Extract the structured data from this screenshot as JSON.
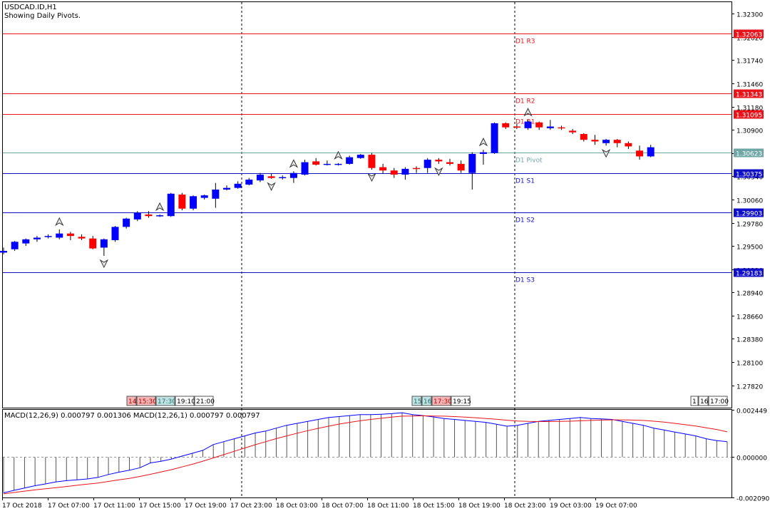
{
  "chart_data": [
    {
      "type": "candlestick",
      "symbol_label": "USDCAD.ID,H1",
      "subtitle": "Showing Daily Pivots.",
      "ylim": [
        1.2755,
        1.3244
      ],
      "y_ticks": [
        "1.32300",
        "1.32020",
        "1.31740",
        "1.31460",
        "1.31180",
        "1.30900",
        "1.30620",
        "1.30340",
        "1.30060",
        "1.29780",
        "1.29500",
        "1.29220",
        "1.28940",
        "1.28660",
        "1.28380",
        "1.28100",
        "1.27820"
      ],
      "grid": false,
      "pivot_lines": [
        {
          "name": "D1 R3",
          "value": 1.32063,
          "label": "1.32063",
          "color": "#e8131b",
          "kind": "resistance"
        },
        {
          "name": "D1 R2",
          "value": 1.31343,
          "label": "1.31343",
          "color": "#e8131b",
          "kind": "resistance"
        },
        {
          "name": "D1 R1",
          "value": 1.31095,
          "label": "1.31095",
          "color": "#e8131b",
          "kind": "resistance"
        },
        {
          "name": "D1 Pivot",
          "value": 1.30623,
          "label": "1.30623",
          "color": "#6fa6a6",
          "kind": "pivot"
        },
        {
          "name": "D1 S1",
          "value": 1.30375,
          "label": "1.30375",
          "color": "#1010c8",
          "kind": "support"
        },
        {
          "name": "D1 S2",
          "value": 1.29903,
          "label": "1.29903",
          "color": "#1010c8",
          "kind": "support"
        },
        {
          "name": "D1 S3",
          "value": 1.29183,
          "label": "1.29183",
          "color": "#1010c8",
          "kind": "support"
        }
      ],
      "candles": [
        [
          1.2942,
          1.2948,
          1.294,
          1.2944
        ],
        [
          1.2946,
          1.2956,
          1.2944,
          1.2955
        ],
        [
          1.2953,
          1.2959,
          1.295,
          1.2958
        ],
        [
          1.2958,
          1.2962,
          1.2955,
          1.296
        ],
        [
          1.2961,
          1.2964,
          1.2959,
          1.2962
        ],
        [
          1.296,
          1.297,
          1.2958,
          1.2965
        ],
        [
          1.2965,
          1.2967,
          1.2957,
          1.2962
        ],
        [
          1.2961,
          1.2964,
          1.2957,
          1.2959
        ],
        [
          1.2959,
          1.2962,
          1.2946,
          1.2947
        ],
        [
          1.2948,
          1.2959,
          1.2938,
          1.2958
        ],
        [
          1.2957,
          1.2974,
          1.2955,
          1.2973
        ],
        [
          1.2973,
          1.2984,
          1.2971,
          1.2983
        ],
        [
          1.2982,
          1.2992,
          1.298,
          1.299
        ],
        [
          1.2988,
          1.2992,
          1.2984,
          1.2986
        ],
        [
          1.2986,
          1.2988,
          1.2985,
          1.2987
        ],
        [
          1.2986,
          1.3014,
          1.2985,
          1.3013
        ],
        [
          1.3012,
          1.3014,
          1.2993,
          1.2995
        ],
        [
          1.2995,
          1.3011,
          1.2993,
          1.301
        ],
        [
          1.3008,
          1.3012,
          1.3006,
          1.3011
        ],
        [
          1.3007,
          1.3026,
          1.2996,
          1.3018
        ],
        [
          1.3018,
          1.3023,
          1.3017,
          1.302
        ],
        [
          1.302,
          1.3028,
          1.3019,
          1.3025
        ],
        [
          1.3024,
          1.3032,
          1.3023,
          1.303
        ],
        [
          1.3029,
          1.3038,
          1.3027,
          1.3036
        ],
        [
          1.3034,
          1.3037,
          1.3031,
          1.3032
        ],
        [
          1.3032,
          1.3035,
          1.303,
          1.3033
        ],
        [
          1.3032,
          1.304,
          1.3026,
          1.3038
        ],
        [
          1.3036,
          1.3054,
          1.3035,
          1.3051
        ],
        [
          1.3052,
          1.3056,
          1.3047,
          1.3048
        ],
        [
          1.3048,
          1.3053,
          1.3047,
          1.3049
        ],
        [
          1.3048,
          1.305,
          1.3047,
          1.3049
        ],
        [
          1.3049,
          1.3059,
          1.3048,
          1.3057
        ],
        [
          1.3056,
          1.3061,
          1.3055,
          1.306
        ],
        [
          1.306,
          1.3062,
          1.3042,
          1.3044
        ],
        [
          1.3045,
          1.3049,
          1.3037,
          1.3041
        ],
        [
          1.3041,
          1.3044,
          1.3032,
          1.3036
        ],
        [
          1.3036,
          1.3045,
          1.303,
          1.3043
        ],
        [
          1.3044,
          1.3046,
          1.3038,
          1.3043
        ],
        [
          1.3044,
          1.3056,
          1.3038,
          1.3054
        ],
        [
          1.3054,
          1.3056,
          1.3049,
          1.3052
        ],
        [
          1.3051,
          1.3055,
          1.3047,
          1.3049
        ],
        [
          1.3049,
          1.3053,
          1.3038,
          1.3041
        ],
        [
          1.3038,
          1.3063,
          1.3018,
          1.3061
        ],
        [
          1.3061,
          1.3066,
          1.3048,
          1.3063
        ],
        [
          1.3062,
          1.3099,
          1.3061,
          1.3098
        ],
        [
          1.3098,
          1.3099,
          1.3091,
          1.3093
        ],
        [
          1.3094,
          1.3097,
          1.3091,
          1.3093
        ],
        [
          1.3092,
          1.3102,
          1.309,
          1.31
        ],
        [
          1.3099,
          1.31,
          1.309,
          1.3093
        ],
        [
          1.3092,
          1.3102,
          1.309,
          1.3094
        ],
        [
          1.3093,
          1.3095,
          1.309,
          1.3092
        ],
        [
          1.3089,
          1.3091,
          1.3085,
          1.3087
        ],
        [
          1.3085,
          1.3086,
          1.3076,
          1.3078
        ],
        [
          1.3078,
          1.3084,
          1.3072,
          1.3076
        ],
        [
          1.3074,
          1.3079,
          1.3071,
          1.3078
        ],
        [
          1.3078,
          1.3079,
          1.3069,
          1.3074
        ],
        [
          1.3074,
          1.3076,
          1.3067,
          1.307
        ],
        [
          1.3065,
          1.3071,
          1.3054,
          1.3058
        ],
        [
          1.3058,
          1.3072,
          1.3057,
          1.3069
        ]
      ],
      "bull_color": "#0000ff",
      "bear_color": "#ff0000",
      "fractals_up": [
        5,
        14,
        26,
        30,
        43,
        47
      ],
      "fractals_down": [
        9,
        24,
        33,
        39,
        54
      ],
      "session_separators": [
        "17 Oct 23:00",
        "18 Oct 23:00"
      ],
      "time_markers": [
        {
          "group": "a",
          "labels": [
            "14:",
            "15:30",
            "17:30",
            "19:10",
            "21:00"
          ],
          "styles": [
            "red",
            "red",
            "teal",
            "plain",
            "plain"
          ]
        },
        {
          "group": "b",
          "labels": [
            "15:",
            "16:",
            "17:30",
            "19:15"
          ],
          "styles": [
            "teal",
            "teal",
            "red",
            "plain"
          ]
        },
        {
          "group": "c",
          "labels": [
            "1",
            "16:",
            "17:00"
          ],
          "styles": [
            "plain",
            "plain",
            "plain"
          ]
        }
      ],
      "x_ticks": [
        "17 Oct 2018",
        "17 Oct 07:00",
        "17 Oct 11:00",
        "17 Oct 15:00",
        "17 Oct 19:00",
        "17 Oct 23:00",
        "18 Oct 03:00",
        "18 Oct 07:00",
        "18 Oct 11:00",
        "18 Oct 15:00",
        "18 Oct 19:00",
        "18 Oct 23:00",
        "19 Oct 03:00",
        "19 Oct 07:00"
      ]
    },
    {
      "type": "line",
      "indicator_label": "MACD(12,26,9) 0.000797 0.001306 MACD(12,26,1) 0.000797 0.000797",
      "ylim": [
        -0.00209,
        0.00245
      ],
      "y_ticks": [
        "0.002449",
        "0.000000",
        "-0.002090"
      ],
      "grid": false,
      "series": [
        {
          "name": "MACD(12,26,9)",
          "color": "#0000ff",
          "values": [
            -0.00185,
            -0.00172,
            -0.0016,
            -0.00148,
            -0.00139,
            -0.00128,
            -0.00122,
            -0.00118,
            -0.00113,
            -0.00105,
            -0.0009,
            -0.00078,
            -0.00068,
            -0.00055,
            -0.0003,
            -0.00022,
            -0.0001,
            5e-05,
            0.0002,
            0.00035,
            0.00065,
            0.0008,
            0.00095,
            0.0011,
            0.00125,
            0.00135,
            0.0015,
            0.00165,
            0.00175,
            0.00185,
            0.00195,
            0.00205,
            0.0021,
            0.00215,
            0.0022,
            0.0022,
            0.00222,
            0.00225,
            0.0023,
            0.0022,
            0.00215,
            0.00208,
            0.002,
            0.00195,
            0.0019,
            0.00185,
            0.0018,
            0.0017,
            0.0016,
            0.00165,
            0.00175,
            0.00185,
            0.0019,
            0.00195,
            0.002,
            0.00205,
            0.002,
            0.00198,
            0.00195,
            0.00185,
            0.00175,
            0.00165,
            0.0015,
            0.0014,
            0.0013,
            0.0012,
            0.0011,
            0.00095,
            0.00085,
            0.0008
          ]
        },
        {
          "name": "MACD(12,26,1)",
          "color": "#e8131b",
          "values": [
            -0.0019,
            -0.00183,
            -0.00176,
            -0.0017,
            -0.00164,
            -0.00158,
            -0.00152,
            -0.00146,
            -0.0014,
            -0.00134,
            -0.00126,
            -0.00118,
            -0.0011,
            -0.001,
            -0.00089,
            -0.00077,
            -0.00065,
            -0.00051,
            -0.00037,
            -0.00021,
            -4e-05,
            0.00013,
            0.0003,
            0.00047,
            0.00064,
            0.0008,
            0.00096,
            0.0011,
            0.00124,
            0.00137,
            0.00149,
            0.0016,
            0.00171,
            0.0018,
            0.00188,
            0.00195,
            0.00201,
            0.00207,
            0.00212,
            0.00213,
            0.00214,
            0.00213,
            0.00212,
            0.0021,
            0.00207,
            0.00204,
            0.002,
            0.00196,
            0.00191,
            0.00187,
            0.00185,
            0.00184,
            0.00184,
            0.00185,
            0.00186,
            0.00188,
            0.0019,
            0.00192,
            0.00193,
            0.00193,
            0.00192,
            0.0019,
            0.00186,
            0.00181,
            0.00175,
            0.00168,
            0.00161,
            0.00152,
            0.00143,
            0.00131
          ]
        }
      ]
    }
  ]
}
